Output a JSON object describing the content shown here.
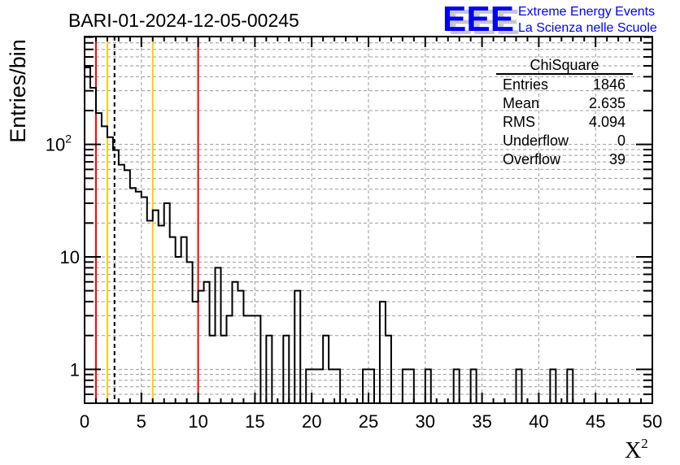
{
  "logo": {
    "text": "EEE",
    "line1": "Extreme Energy Events",
    "line2": "La Scienza nelle Scuole",
    "color": "#0000ff"
  },
  "chart_data": {
    "type": "histogram",
    "title": "BARI-01-2024-12-05-00245",
    "xlabel": "X",
    "xlabel_sup": "2",
    "ylabel": "Entries/bin",
    "xlim": [
      0,
      50
    ],
    "ylim": [
      0.5,
      910
    ],
    "yscale": "log",
    "grid": true,
    "bin_width": 0.5,
    "x_ticks": [
      0,
      5,
      10,
      15,
      20,
      25,
      30,
      35,
      40,
      45,
      50
    ],
    "x_tick_labels": [
      "0",
      "5",
      "10",
      "15",
      "20",
      "25",
      "30",
      "35",
      "40",
      "45",
      "50"
    ],
    "y_ticks": [
      {
        "value": 1,
        "label": "1",
        "sup": ""
      },
      {
        "value": 10,
        "label": "10",
        "sup": ""
      },
      {
        "value": 100,
        "label": "10",
        "sup": "2"
      }
    ],
    "values": [
      483,
      319,
      190,
      145,
      116,
      89,
      66,
      59,
      41,
      38,
      34,
      21,
      26,
      19,
      30,
      15,
      10,
      15,
      9,
      4,
      5,
      6,
      2,
      8,
      2,
      3,
      6,
      5,
      3,
      3,
      3,
      0,
      2,
      0,
      0,
      2,
      0,
      5,
      0,
      1,
      1,
      1,
      2,
      1,
      1,
      0,
      0,
      0,
      0,
      1,
      1,
      0,
      4,
      2,
      0,
      0,
      1,
      1,
      0,
      0,
      1,
      0,
      0,
      0,
      0,
      1,
      0,
      0,
      1,
      0,
      0,
      0,
      0,
      0,
      0,
      0,
      1,
      0,
      0,
      0,
      0,
      0,
      1,
      0,
      0,
      1,
      0,
      0,
      0,
      0,
      0,
      0,
      0,
      0,
      0,
      0,
      0,
      0,
      0,
      0
    ],
    "vertical_lines": [
      {
        "x": 1,
        "color": "#ff0000",
        "style": "solid"
      },
      {
        "x": 2,
        "color": "#ffcc00",
        "style": "solid"
      },
      {
        "x": 2.635,
        "color": "#000000",
        "style": "dashed"
      },
      {
        "x": 6,
        "color": "#ffcc00",
        "style": "solid"
      },
      {
        "x": 10,
        "color": "#ff0000",
        "style": "solid"
      }
    ],
    "stats": {
      "name": "ChiSquare",
      "rows": [
        {
          "label": "Entries",
          "value": "1846"
        },
        {
          "label": "Mean",
          "value": "2.635"
        },
        {
          "label": "RMS",
          "value": "4.094"
        },
        {
          "label": "Underflow",
          "value": "0"
        },
        {
          "label": "Overflow",
          "value": "39"
        }
      ]
    }
  }
}
